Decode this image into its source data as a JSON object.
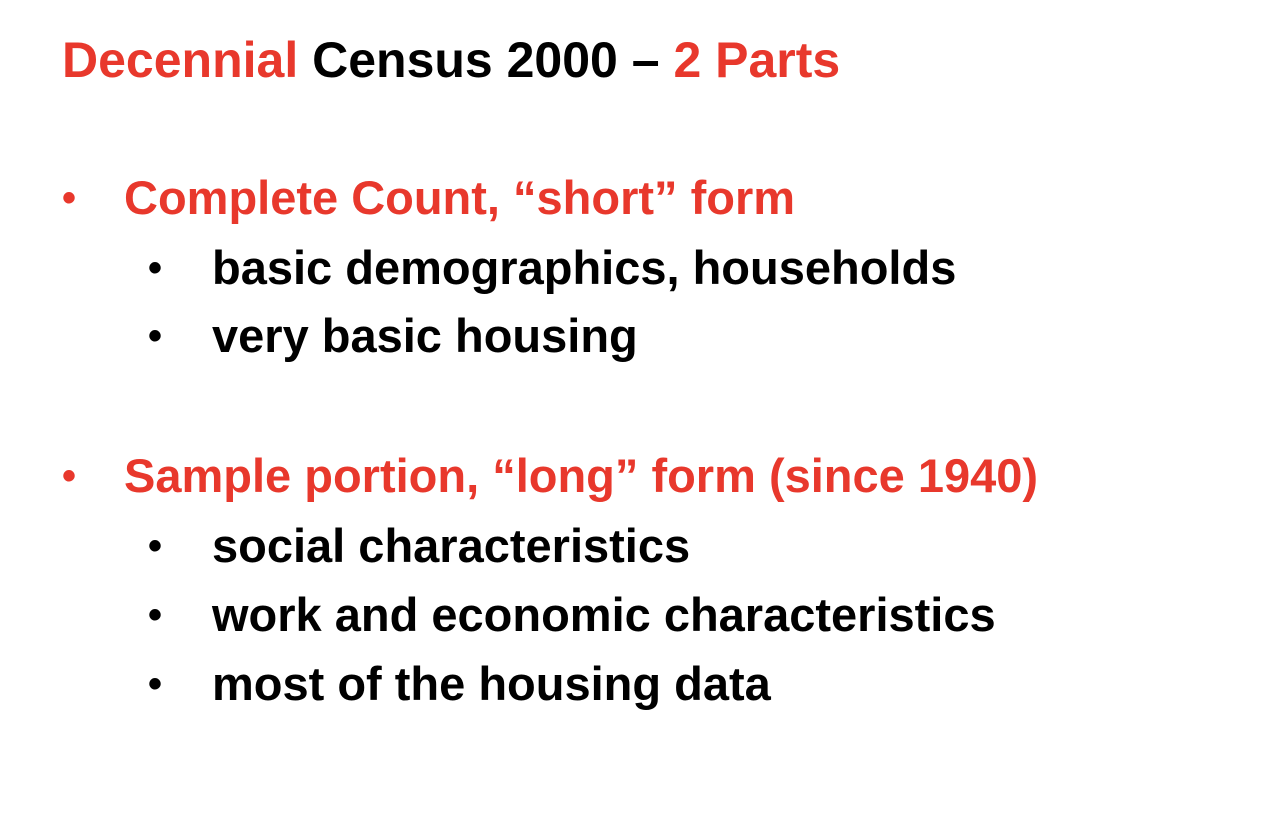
{
  "title": {
    "part1": "Decennial",
    "part2": " Census 2000 – ",
    "part3": "2 Parts"
  },
  "bullet_char": "•",
  "sections": [
    {
      "heading": "Complete Count, “short” form",
      "items": [
        "basic demographics, households",
        "very basic housing"
      ]
    },
    {
      "heading": "Sample portion, “long” form  (since 1940)",
      "items": [
        "social characteristics",
        "work and economic characteristics",
        "most of the housing data"
      ]
    }
  ],
  "colors": {
    "accent_red": "#e8382c",
    "text_black": "#000000"
  }
}
